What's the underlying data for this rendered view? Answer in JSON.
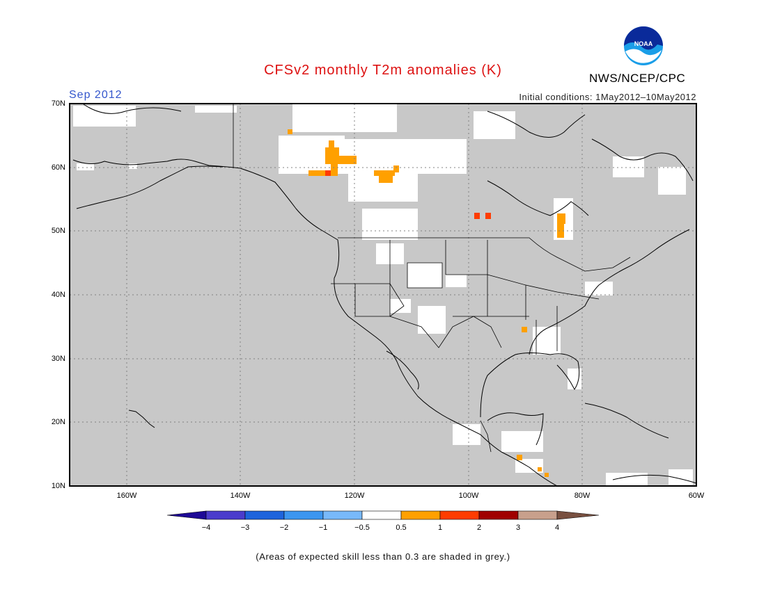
{
  "header": {
    "title": "CFSv2 monthly T2m anomalies (K)",
    "month": "Sep 2012",
    "organization": "NWS/NCEP/CPC",
    "logo_text": "NOAA",
    "initial_conditions": "Initial conditions: 1May2012–10May2012"
  },
  "map": {
    "lat_labels": [
      "70N",
      "60N",
      "50N",
      "40N",
      "30N",
      "20N",
      "10N"
    ],
    "lon_labels": [
      "160W",
      "140W",
      "120W",
      "100W",
      "80W",
      "60W"
    ],
    "lon_range": [
      -170,
      -60
    ],
    "lat_range": [
      10,
      70
    ],
    "gridlines": true,
    "background_color": "#c8c8c8"
  },
  "colorbar": {
    "labels": [
      "−4",
      "−3",
      "−2",
      "−1",
      "−0.5",
      "0.5",
      "1",
      "2",
      "3",
      "4"
    ],
    "colors": [
      "#1e0a96",
      "#4b3ccc",
      "#1e64dc",
      "#3c96f0",
      "#78b9fa",
      "#ffffff",
      "#ffa000",
      "#ff3c00",
      "#a00000",
      "#c8a08c",
      "#785040"
    ]
  },
  "footer": {
    "note": "(Areas of expected skill less than 0.3 are shaded in grey.)"
  },
  "colors": {
    "title": "#dd1111",
    "month": "#3355cc",
    "skill_grey": "#c8c8c8",
    "positive_anomaly": "#ffa000",
    "strong_positive_anomaly": "#ff3c00"
  }
}
